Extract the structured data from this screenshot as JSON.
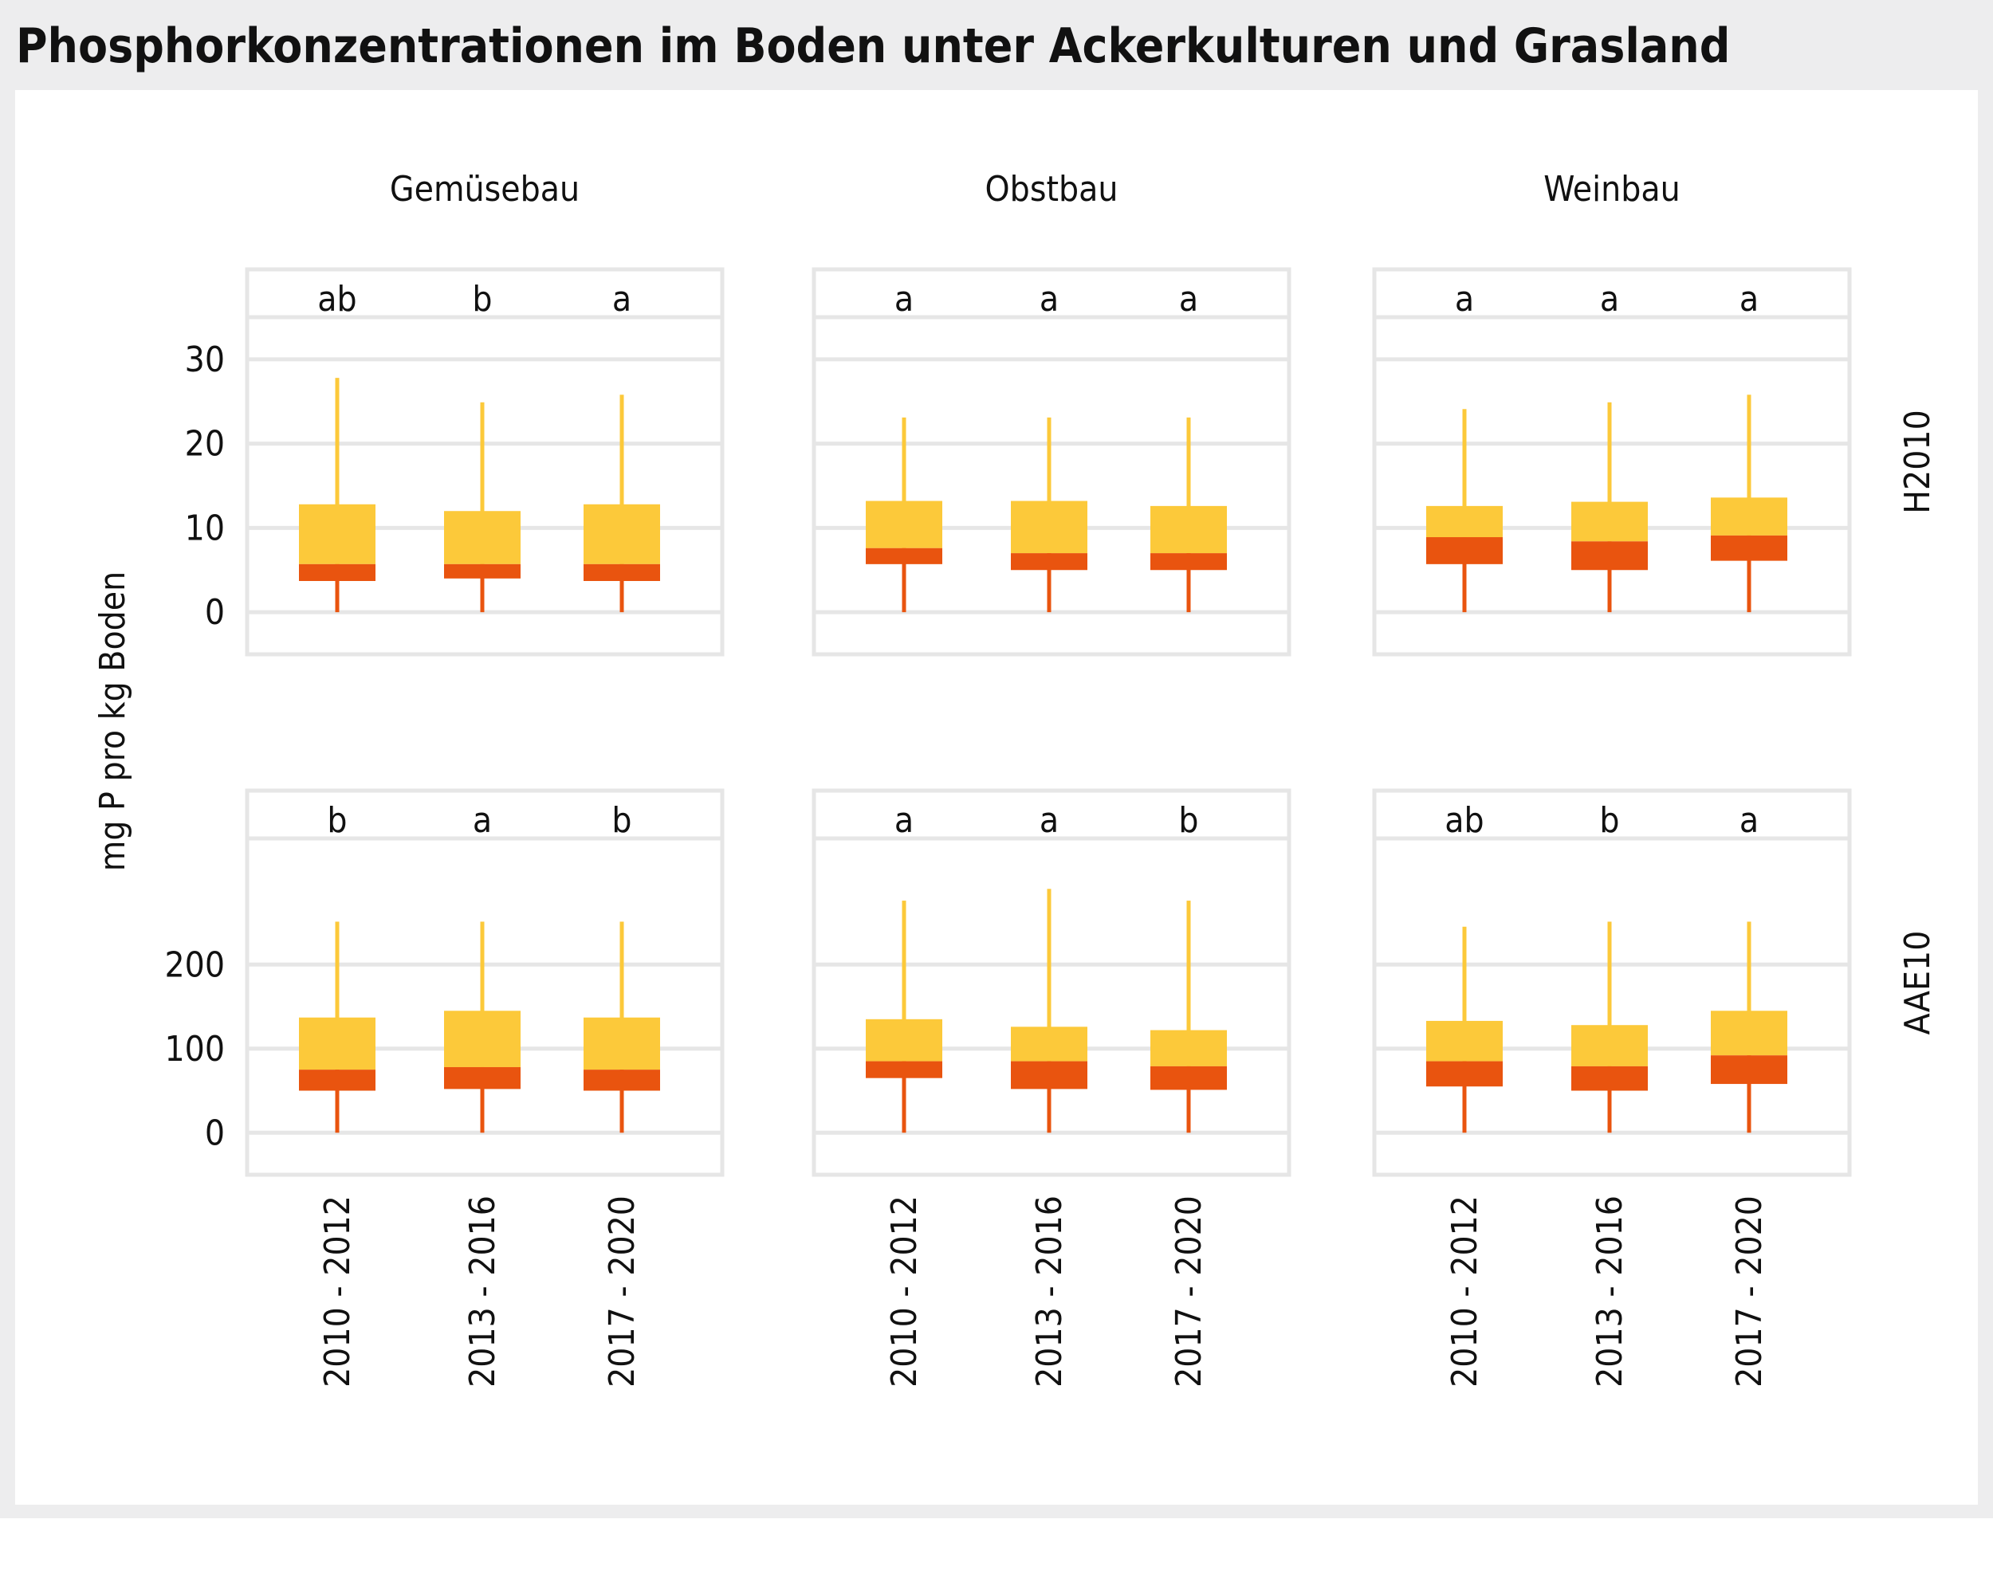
{
  "title": "Phosphorkonzentrationen im Boden unter Ackerkulturen und Grasland",
  "chart_data": {
    "type": "boxplot",
    "title": "Phosphorkonzentrationen im Boden unter Ackerkulturen und Grasland",
    "ylabel": "mg P pro kg Boden",
    "columns": [
      "Gemüsebau",
      "Obstbau",
      "Weinbau"
    ],
    "categories": [
      "2010 - 2012",
      "2013 - 2016",
      "2017 - 2020"
    ],
    "colors": {
      "upper_box": "#fcc93a",
      "lower_box": "#e9540f",
      "grid": "#e6e6e6",
      "frame": "#e6e6e6"
    },
    "rows": [
      {
        "label": "H2010",
        "ylim": [
          -5,
          35
        ],
        "ticks": [
          0,
          10,
          20,
          30
        ],
        "panels": [
          {
            "letters": [
              "ab",
              "b",
              "a"
            ],
            "boxes": [
              {
                "min": 0,
                "q1": 3.7,
                "median": 5.7,
                "q3": 12.8,
                "max": 27.8
              },
              {
                "min": 0,
                "q1": 4.0,
                "median": 5.7,
                "q3": 12.0,
                "max": 24.9
              },
              {
                "min": 0,
                "q1": 3.7,
                "median": 5.7,
                "q3": 12.8,
                "max": 25.8
              }
            ]
          },
          {
            "letters": [
              "a",
              "a",
              "a"
            ],
            "boxes": [
              {
                "min": 0,
                "q1": 5.7,
                "median": 7.6,
                "q3": 13.2,
                "max": 23.1
              },
              {
                "min": 0,
                "q1": 5.0,
                "median": 7.0,
                "q3": 13.2,
                "max": 23.1
              },
              {
                "min": 0,
                "q1": 5.0,
                "median": 7.0,
                "q3": 12.6,
                "max": 23.1
              }
            ]
          },
          {
            "letters": [
              "a",
              "a",
              "a"
            ],
            "boxes": [
              {
                "min": 0,
                "q1": 5.7,
                "median": 8.9,
                "q3": 12.6,
                "max": 24.1
              },
              {
                "min": 0,
                "q1": 5.0,
                "median": 8.4,
                "q3": 13.1,
                "max": 24.9
              },
              {
                "min": 0,
                "q1": 6.1,
                "median": 9.1,
                "q3": 13.6,
                "max": 25.8
              }
            ]
          }
        ]
      },
      {
        "label": "AAE10",
        "ylim": [
          -50,
          350
        ],
        "ticks": [
          0,
          100,
          200
        ],
        "panels": [
          {
            "letters": [
              "b",
              "a",
              "b"
            ],
            "boxes": [
              {
                "min": 0,
                "q1": 50,
                "median": 75,
                "q3": 137,
                "max": 251
              },
              {
                "min": 0,
                "q1": 52,
                "median": 78,
                "q3": 145,
                "max": 251
              },
              {
                "min": 0,
                "q1": 50,
                "median": 75,
                "q3": 137,
                "max": 251
              }
            ]
          },
          {
            "letters": [
              "a",
              "a",
              "b"
            ],
            "boxes": [
              {
                "min": 0,
                "q1": 65,
                "median": 85,
                "q3": 135,
                "max": 276
              },
              {
                "min": 0,
                "q1": 52,
                "median": 85,
                "q3": 126,
                "max": 290
              },
              {
                "min": 0,
                "q1": 51,
                "median": 79,
                "q3": 122,
                "max": 276
              }
            ]
          },
          {
            "letters": [
              "ab",
              "b",
              "a"
            ],
            "boxes": [
              {
                "min": 0,
                "q1": 55,
                "median": 85,
                "q3": 133,
                "max": 245
              },
              {
                "min": 0,
                "q1": 50,
                "median": 79,
                "q3": 128,
                "max": 251
              },
              {
                "min": 0,
                "q1": 58,
                "median": 92,
                "q3": 145,
                "max": 251
              }
            ]
          }
        ]
      }
    ]
  }
}
